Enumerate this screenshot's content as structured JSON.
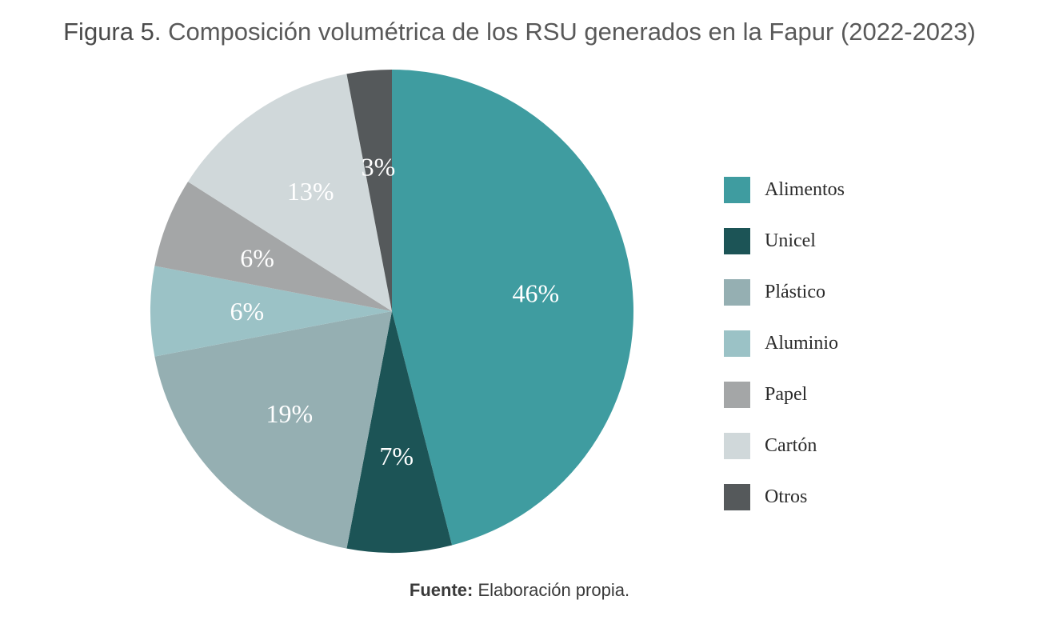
{
  "figure": {
    "title_lead": "Figura 5.",
    "title_text": "Composición volumétrica de los RSU generados en la Fapur (2022-2023)",
    "source_lead": "Fuente:",
    "source_text": "Elaboración propia."
  },
  "chart_data": {
    "type": "pie",
    "title": "Composición volumétrica de los RSU generados en la Fapur (2022-2023)",
    "unit": "%",
    "start": "12 o'clock",
    "direction": "clockwise",
    "legend_position": "right",
    "slices": [
      {
        "label": "Alimentos",
        "value": 46,
        "display": "46%",
        "color": "#3f9ca0"
      },
      {
        "label": "Unicel",
        "value": 7,
        "display": "7%",
        "color": "#1c5456"
      },
      {
        "label": "Plástico",
        "value": 19,
        "display": "19%",
        "color": "#95afb2"
      },
      {
        "label": "Aluminio",
        "value": 6,
        "display": "6%",
        "color": "#9bc2c6"
      },
      {
        "label": "Papel",
        "value": 6,
        "display": "6%",
        "color": "#a4a6a7"
      },
      {
        "label": "Cartón",
        "value": 13,
        "display": "13%",
        "color": "#d0d8da"
      },
      {
        "label": "Otros",
        "value": 3,
        "display": "3%",
        "color": "#55595b"
      }
    ]
  }
}
